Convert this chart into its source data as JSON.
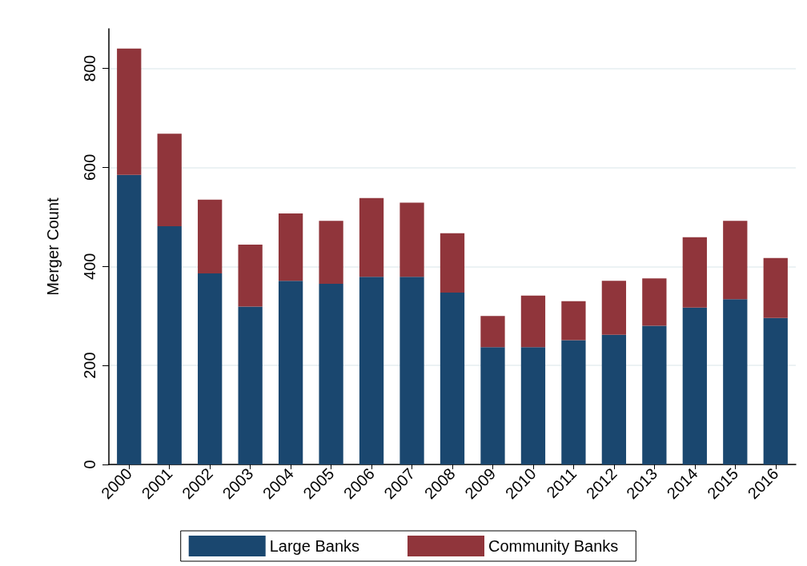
{
  "chart_data": {
    "type": "bar",
    "stacked": true,
    "ylabel": "Merger Count",
    "categories": [
      "2000",
      "2001",
      "2002",
      "2003",
      "2004",
      "2005",
      "2006",
      "2007",
      "2008",
      "2009",
      "2010",
      "2011",
      "2012",
      "2013",
      "2014",
      "2015",
      "2016"
    ],
    "series": [
      {
        "name": "Large Banks",
        "color": "#1a476f",
        "values": [
          585,
          481,
          386,
          319,
          371,
          365,
          379,
          379,
          347,
          237,
          237,
          251,
          262,
          280,
          317,
          334,
          296
        ]
      },
      {
        "name": "Community Banks",
        "color": "#90353b",
        "values": [
          255,
          187,
          149,
          125,
          136,
          127,
          159,
          150,
          120,
          63,
          104,
          79,
          109,
          96,
          142,
          158,
          121
        ]
      }
    ],
    "ylim": [
      0,
      880
    ],
    "yticks": [
      0,
      200,
      400,
      600,
      800
    ],
    "grid": "y",
    "legend": "bottom"
  }
}
